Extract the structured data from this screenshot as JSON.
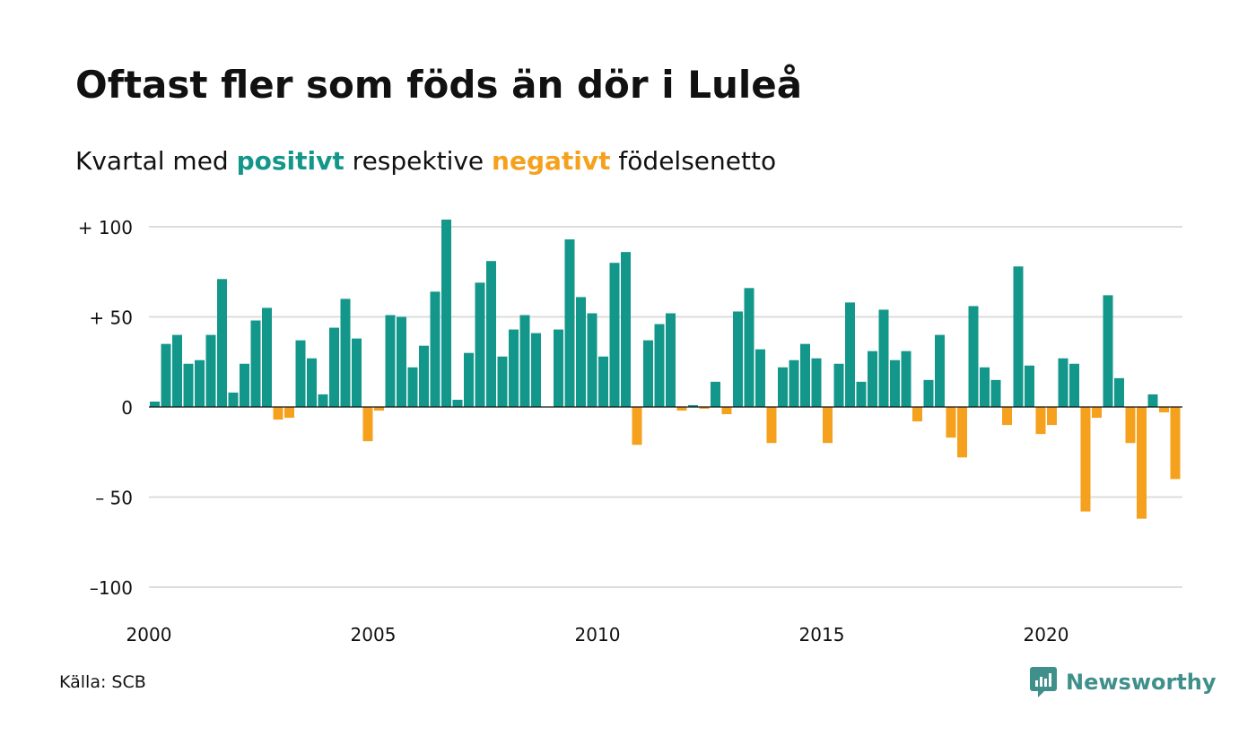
{
  "title": "Oftast fler som föds än dör i Luleå",
  "subtitle": {
    "prefix": "Kvartal med ",
    "positive_word": "positivt",
    "middle": " respektive ",
    "negative_word": "negativt",
    "suffix": " födelsenetto"
  },
  "source": "Källa: SCB",
  "brand": "Newsworthy",
  "colors": {
    "positive": "#13978a",
    "negative": "#f5a11d",
    "grid": "#dddddd",
    "brand": "#3f8f8a"
  },
  "chart_data": {
    "type": "bar",
    "x_unit": "quarter",
    "start": "2000 Q1",
    "ylim": [
      -100,
      100
    ],
    "yticks": [
      {
        "value": 100,
        "label": "+ 100"
      },
      {
        "value": 50,
        "label": "+  50"
      },
      {
        "value": 0,
        "label": "0"
      },
      {
        "value": -50,
        "label": "– 50"
      },
      {
        "value": -100,
        "label": "–100"
      }
    ],
    "xticks": [
      {
        "year": 2000,
        "label": "2000"
      },
      {
        "year": 2005,
        "label": "2005"
      },
      {
        "year": 2010,
        "label": "2010"
      },
      {
        "year": 2015,
        "label": "2015"
      },
      {
        "year": 2020,
        "label": "2020"
      }
    ],
    "grid": true,
    "values": [
      3,
      35,
      40,
      24,
      26,
      40,
      71,
      8,
      24,
      48,
      55,
      -7,
      -6,
      37,
      27,
      7,
      44,
      60,
      38,
      -19,
      -2,
      51,
      50,
      22,
      34,
      64,
      104,
      4,
      30,
      69,
      81,
      28,
      43,
      51,
      41,
      0,
      43,
      93,
      61,
      52,
      28,
      80,
      86,
      -21,
      37,
      46,
      52,
      -2,
      1,
      -1,
      14,
      -4,
      53,
      66,
      32,
      -20,
      22,
      26,
      35,
      27,
      -20,
      24,
      58,
      14,
      31,
      54,
      26,
      31,
      -8,
      15,
      40,
      -17,
      -28,
      56,
      22,
      15,
      -10,
      78,
      23,
      -15,
      -10,
      27,
      24,
      -58,
      -6,
      62,
      16,
      -20,
      -62,
      7,
      -3,
      -40
    ]
  }
}
